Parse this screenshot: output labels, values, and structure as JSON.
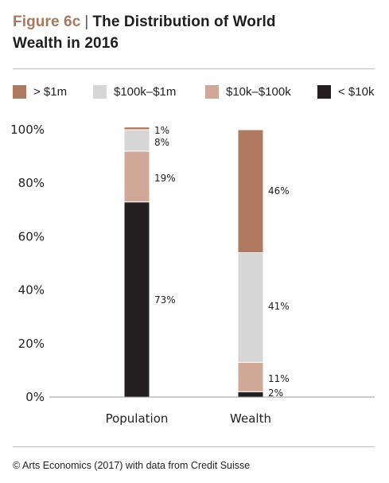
{
  "header": {
    "figure_label": "Figure 6c",
    "separator": "|",
    "title_line1": "The Distribution of World",
    "title_line2": "Wealth in 2016"
  },
  "colors": {
    "gt_1m": "#b07a62",
    "100k_1m": "#d6d6d6",
    "10k_100k": "#cfa898",
    "lt_10k": "#231f20",
    "figure_label": "#a9785c"
  },
  "chart_data": {
    "type": "bar",
    "stacked": true,
    "categories": [
      "Population",
      "Wealth"
    ],
    "series": [
      {
        "name": "< $10k",
        "values": [
          73,
          2
        ],
        "labels": [
          "73%",
          "2%"
        ],
        "color": "#231f20"
      },
      {
        "name": "$10k–$100k",
        "values": [
          19,
          11
        ],
        "labels": [
          "19%",
          "11%"
        ],
        "color": "#cfa898"
      },
      {
        "name": "$100k–$1m",
        "values": [
          8,
          41
        ],
        "labels": [
          "8%",
          "41%"
        ],
        "color": "#d6d6d6"
      },
      {
        "name": "> $1m",
        "values": [
          1,
          46
        ],
        "labels": [
          "1%",
          "46%"
        ],
        "color": "#b07a62"
      }
    ],
    "legend_order": [
      "> $1m",
      "$100k–$1m",
      "$10k–$100k",
      "< $10k"
    ],
    "y_ticks": [
      "0%",
      "20%",
      "40%",
      "60%",
      "80%",
      "100%"
    ],
    "ylim": [
      0,
      100
    ],
    "xlabel": "",
    "ylabel": "",
    "legend_position": "top",
    "grid": false
  },
  "footer": {
    "source": "© Arts Economics (2017) with data from Credit Suisse"
  }
}
